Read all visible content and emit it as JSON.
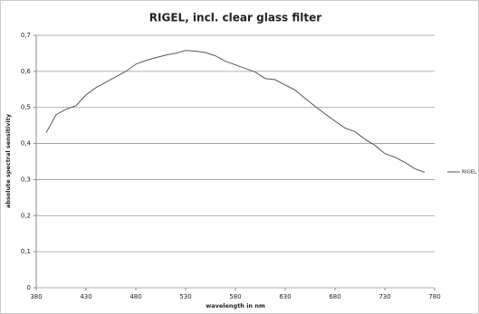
{
  "chart_data": {
    "type": "line",
    "title": "RIGEL, incl. clear glass filter",
    "xlabel": "wavelength in nm",
    "ylabel": "absolute spectral sensitivity",
    "x": [
      390,
      400,
      410,
      420,
      430,
      440,
      450,
      460,
      470,
      480,
      490,
      500,
      510,
      520,
      530,
      540,
      550,
      560,
      570,
      580,
      590,
      600,
      610,
      620,
      630,
      640,
      650,
      660,
      670,
      680,
      690,
      700,
      710,
      720,
      730,
      740,
      750,
      760,
      770
    ],
    "series": [
      {
        "name": "RIGEL",
        "color": "#555555",
        "values": [
          0.43,
          0.48,
          0.495,
          0.505,
          0.535,
          0.555,
          0.57,
          0.585,
          0.6,
          0.62,
          0.63,
          0.638,
          0.645,
          0.65,
          0.658,
          0.656,
          0.652,
          0.643,
          0.628,
          0.618,
          0.608,
          0.598,
          0.58,
          0.577,
          0.562,
          0.548,
          0.525,
          0.503,
          0.482,
          0.462,
          0.443,
          0.433,
          0.412,
          0.395,
          0.372,
          0.362,
          0.348,
          0.33,
          0.32
        ]
      }
    ],
    "xlim": [
      380,
      780
    ],
    "xticks": [
      380,
      430,
      480,
      530,
      580,
      630,
      680,
      730,
      780
    ],
    "ylim": [
      0,
      0.7
    ],
    "yticks": [
      0,
      {
        "value": 0.1,
        "label": "0,1"
      },
      {
        "value": 0.2,
        "label": "0,2"
      },
      {
        "value": 0.3,
        "label": "0,3"
      },
      {
        "value": 0.4,
        "label": "0,4"
      },
      {
        "value": 0.5,
        "label": "0,5"
      },
      {
        "value": 0.6,
        "label": "0,6"
      },
      {
        "value": 0.7,
        "label": "0,7"
      }
    ],
    "grid": true,
    "legend": "right"
  }
}
